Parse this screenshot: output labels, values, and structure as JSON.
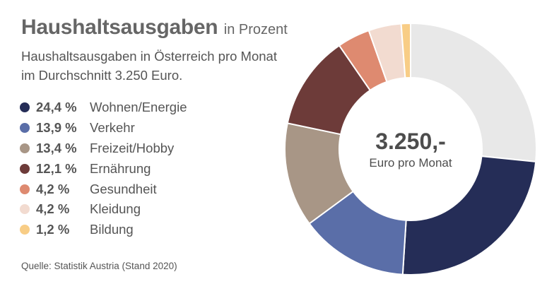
{
  "header": {
    "title": "Haushaltsausgaben",
    "title_unit": "in Prozent",
    "subtitle_line1": "Haushaltsausgaben in Österreich pro Monat",
    "subtitle_line2": "im Durchschnitt 3.250 Euro."
  },
  "center": {
    "value": "3.250,-",
    "label": "Euro pro Monat"
  },
  "source": "Quelle: Statistik Austria (Stand 2020)",
  "chart_data": {
    "type": "pie",
    "donut": true,
    "title": "Haushaltsausgaben",
    "legend_position": "left",
    "slices": [
      {
        "label": "Wohnen/Energie",
        "value": 24.4,
        "value_label": "24,4 %",
        "color": "#252d57"
      },
      {
        "label": "Verkehr",
        "value": 13.9,
        "value_label": "13,9 %",
        "color": "#5a6ea8"
      },
      {
        "label": "Freizeit/Hobby",
        "value": 13.4,
        "value_label": "13,4 %",
        "color": "#a89686"
      },
      {
        "label": "Ernährung",
        "value": 12.1,
        "value_label": "12,1 %",
        "color": "#6d3b39"
      },
      {
        "label": "Gesundheit",
        "value": 4.2,
        "value_label": "4,2 %",
        "color": "#de8a70"
      },
      {
        "label": "Kleidung",
        "value": 4.2,
        "value_label": "4,2 %",
        "color": "#f2dbd0"
      },
      {
        "label": "Bildung",
        "value": 1.2,
        "value_label": "1,2 %",
        "color": "#f8cd86"
      }
    ],
    "remainder": {
      "value": 26.6,
      "color": "#e8e8e8"
    }
  }
}
